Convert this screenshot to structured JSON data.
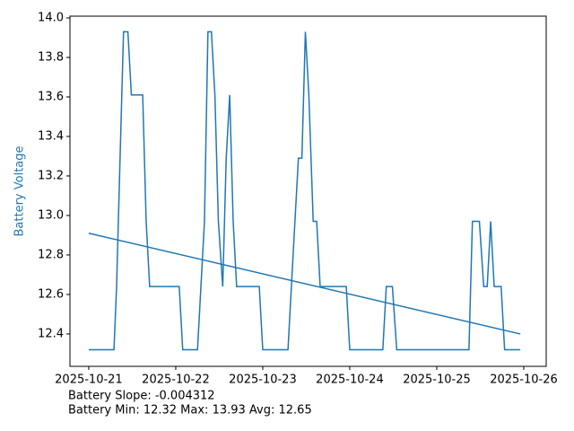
{
  "chart_data": {
    "type": "line",
    "ylabel": "Battery Voltage",
    "ylabel_color": "#1f77b4",
    "annotations": [
      "Battery Slope: -0.004312",
      "Battery Min: 12.32 Max: 13.93 Avg: 12.65"
    ],
    "xlim": [
      -0.216,
      5.258
    ],
    "xticks": [
      {
        "value": 0,
        "label": "2025-10-21"
      },
      {
        "value": 1,
        "label": "2025-10-22"
      },
      {
        "value": 2,
        "label": "2025-10-23"
      },
      {
        "value": 3,
        "label": "2025-10-24"
      },
      {
        "value": 4,
        "label": "2025-10-25"
      },
      {
        "value": 5,
        "label": "2025-10-26"
      }
    ],
    "ylim": [
      12.236,
      14.009
    ],
    "yticks": [
      12.4,
      12.6,
      12.8,
      {
        "value": 13,
        "label": "13.0"
      },
      13.2,
      13.4,
      13.6,
      13.8,
      {
        "value": 14,
        "label": "14.0"
      }
    ],
    "series": [
      {
        "color": "#1f77b4",
        "x": [
          0,
          0.29,
          0.32,
          0.36,
          0.38,
          0.4,
          0.45,
          0.49,
          0.62,
          0.66,
          0.7,
          1.04,
          1.08,
          1.25,
          1.33,
          1.37,
          1.41,
          1.45,
          1.49,
          1.54,
          1.58,
          1.62,
          1.66,
          1.7,
          1.96,
          2.0,
          2.29,
          2.37,
          2.41,
          2.45,
          2.49,
          2.53,
          2.58,
          2.62,
          2.66,
          2.96,
          3.0,
          3.38,
          3.42,
          3.49,
          3.54,
          4.37,
          4.41,
          4.49,
          4.54,
          4.58,
          4.62,
          4.66,
          4.74,
          4.78,
          4.96
        ],
        "values": [
          12.32,
          12.32,
          12.64,
          13.29,
          13.61,
          13.93,
          13.93,
          13.61,
          13.61,
          12.97,
          12.64,
          12.64,
          12.32,
          12.32,
          12.97,
          13.93,
          13.93,
          13.61,
          12.97,
          12.64,
          13.29,
          13.61,
          12.97,
          12.64,
          12.64,
          12.32,
          12.32,
          12.97,
          13.29,
          13.29,
          13.93,
          13.61,
          12.97,
          12.97,
          12.64,
          12.64,
          12.32,
          12.32,
          12.64,
          12.64,
          12.32,
          12.32,
          12.97,
          12.97,
          12.64,
          12.64,
          12.97,
          12.64,
          12.64,
          12.32,
          12.32
        ]
      },
      {
        "color": "#1f77b4",
        "x": [
          0,
          4.96
        ],
        "values": [
          12.91,
          12.4
        ]
      }
    ]
  }
}
